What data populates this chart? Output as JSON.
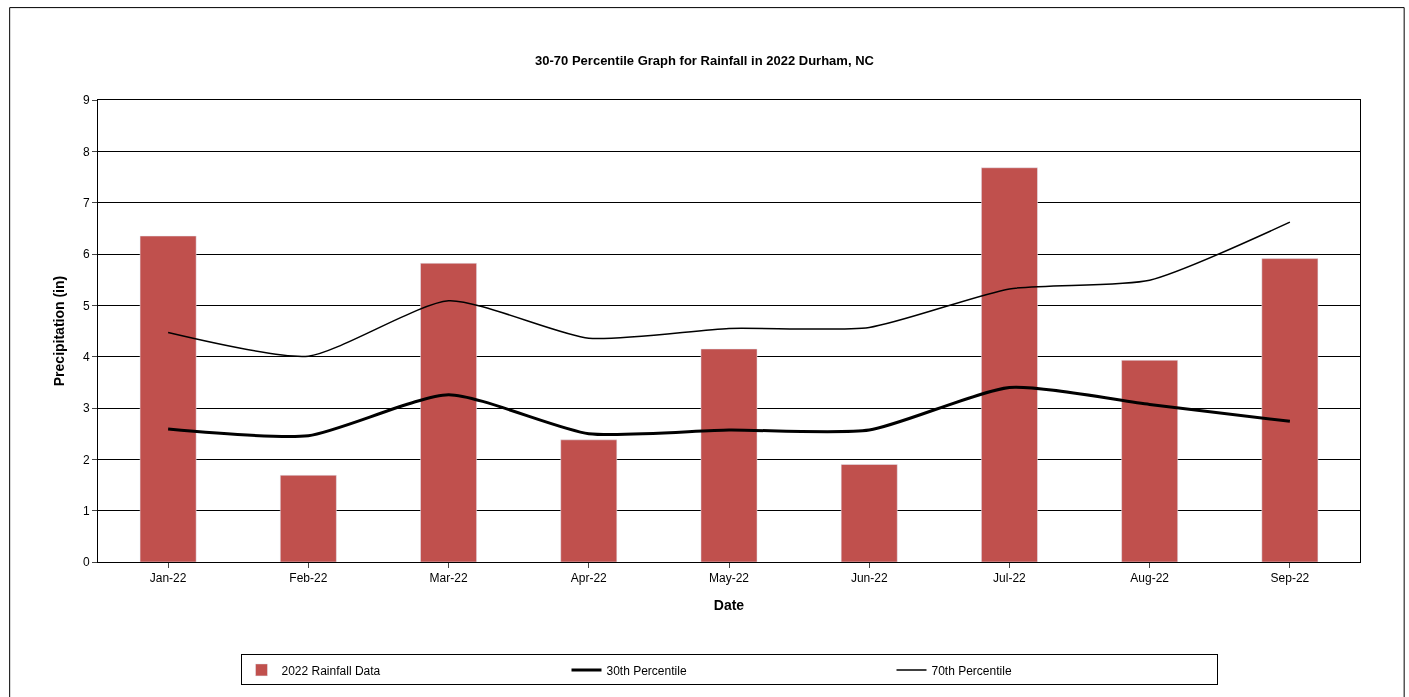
{
  "chart_data": {
    "type": "bar",
    "title": "30-70 Percentile Graph for Rainfall in 2022 Durham, NC",
    "xlabel": "Date",
    "ylabel": "Precipitation (in)",
    "categories": [
      "Jan-22",
      "Feb-22",
      "Mar-22",
      "Apr-22",
      "May-22",
      "Jun-22",
      "Jul-22",
      "Aug-22",
      "Sep-22"
    ],
    "series": [
      {
        "name": "2022 Rainfall Data",
        "color": "#c0504d",
        "values": [
          6.35,
          1.69,
          5.82,
          2.38,
          4.15,
          1.9,
          7.68,
          3.93,
          5.91
        ]
      },
      {
        "name": "30th Percentile",
        "type": "line",
        "color": "#000000",
        "values": [
          2.59,
          2.46,
          3.26,
          2.5,
          2.57,
          2.57,
          3.4,
          3.07,
          2.74
        ]
      },
      {
        "name": "70th Percentile",
        "type": "line",
        "color": "#000000",
        "values": [
          4.47,
          4.01,
          5.09,
          4.36,
          4.55,
          4.57,
          5.32,
          5.49,
          6.62
        ]
      }
    ],
    "ylim": [
      0,
      9
    ],
    "yticks": [
      0,
      1,
      2,
      3,
      4,
      5,
      6,
      7,
      8,
      9
    ],
    "grid": "y",
    "legend": "bottom",
    "marker": "none",
    "line_style": "solid"
  }
}
